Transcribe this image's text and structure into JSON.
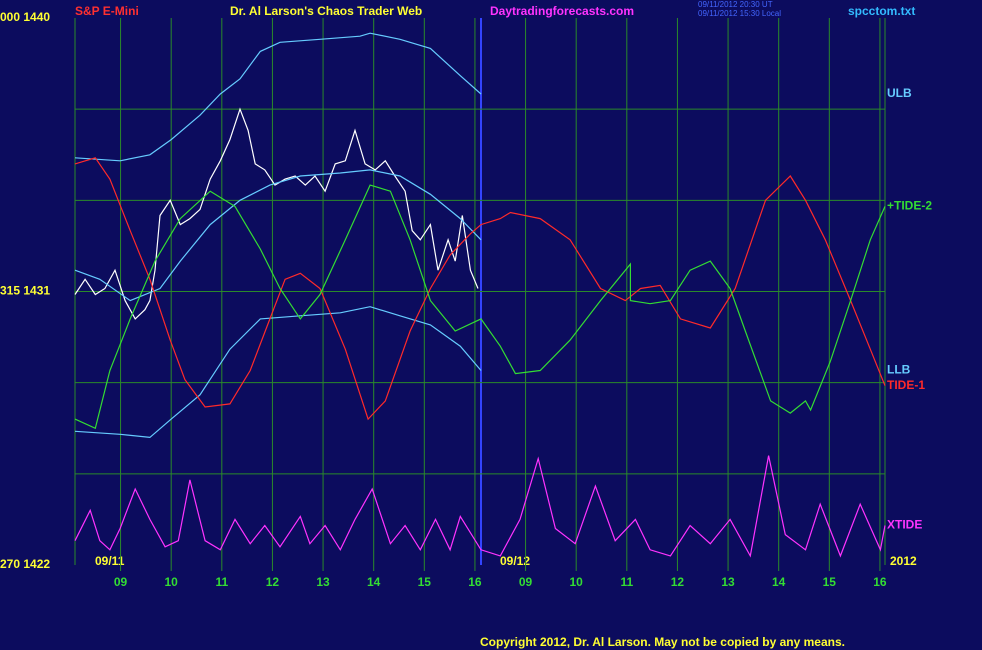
{
  "chart_data": {
    "type": "line",
    "symbol": "S&P E-Mini",
    "title": "Dr. Al Larson's Chaos Trader Web",
    "site": "Daytradingforecasts.com",
    "timestamps": [
      "09/11/2012 20:30 UT",
      "09/11/2012 15:30 Local"
    ],
    "file": "spcctom.txt",
    "copyright": "Copyright 2012, Dr. Al Larson. May not be copied by any means.",
    "day_labels": [
      "09/11",
      "09/12"
    ],
    "year": "2012",
    "xlim": [
      8.1,
      24.1
    ],
    "xticks": [
      {
        "value": 9,
        "label": "09"
      },
      10,
      11,
      12,
      13,
      14,
      15,
      16,
      {
        "value": 17,
        "label": "09"
      },
      {
        "value": 18,
        "label": "10"
      },
      {
        "value": 19,
        "label": "11"
      },
      {
        "value": 20,
        "label": "12"
      },
      {
        "value": 21,
        "label": "13"
      },
      {
        "value": 22,
        "label": "14"
      },
      {
        "value": 23,
        "label": "15"
      },
      {
        "value": 24,
        "label": "16"
      }
    ],
    "ylim": [
      1422,
      1440
    ],
    "yticks": [
      {
        "value": 1440,
        "label": "000 1440"
      },
      {
        "value": 1431,
        "label": "315 1431"
      },
      {
        "value": 1422,
        "label": "270 1422"
      }
    ],
    "ygrid": [
      1437,
      1434,
      1428,
      1425
    ],
    "grid": true,
    "series": [
      {
        "color": "#ffffff",
        "x": [
          8.1,
          8.3,
          8.5,
          8.69,
          8.89,
          9.09,
          9.29,
          9.48,
          9.58,
          9.68,
          9.78,
          9.98,
          10.18,
          10.37,
          10.57,
          10.77,
          10.97,
          11.16,
          11.36,
          11.52,
          11.66,
          11.85,
          12.05,
          12.25,
          12.45,
          12.65,
          12.84,
          13.04,
          13.24,
          13.44,
          13.63,
          13.83,
          14.03,
          14.23,
          14.42,
          14.62,
          14.76,
          14.92,
          15.12,
          15.27,
          15.47,
          15.61,
          15.75,
          15.91,
          16.06
        ],
        "values": [
          1430.9,
          1431.4,
          1430.9,
          1431.1,
          1431.7,
          1430.7,
          1430.1,
          1430.4,
          1430.7,
          1431.7,
          1433.5,
          1434.0,
          1433.2,
          1433.4,
          1433.7,
          1434.7,
          1435.3,
          1436.0,
          1437.0,
          1436.3,
          1435.2,
          1435.0,
          1434.5,
          1434.7,
          1434.8,
          1434.5,
          1434.8,
          1434.3,
          1435.2,
          1435.3,
          1436.3,
          1435.2,
          1435.0,
          1435.3,
          1434.8,
          1434.3,
          1433.0,
          1432.7,
          1433.2,
          1431.7,
          1432.7,
          1432.0,
          1433.5,
          1431.7,
          1431.1
        ]
      },
      {
        "name": "ULB",
        "color": "#66ccff",
        "x": [
          8.1,
          8.99,
          9.58,
          10.0,
          10.57,
          10.97,
          11.36,
          11.76,
          12.15,
          12.94,
          13.73,
          13.93,
          14.52,
          15.12,
          15.71,
          16.12
        ],
        "values": [
          1435.4,
          1435.3,
          1435.5,
          1436.0,
          1436.8,
          1437.5,
          1438.0,
          1438.9,
          1439.2,
          1439.3,
          1439.4,
          1439.5,
          1439.3,
          1439.0,
          1438.1,
          1437.5
        ]
      },
      {
        "color": "#66ccff",
        "x": [
          8.1,
          8.59,
          9.19,
          9.78,
          10.18,
          10.77,
          11.36,
          11.95,
          12.55,
          13.34,
          13.93,
          14.52,
          15.12,
          15.71,
          16.12
        ],
        "values": [
          1431.7,
          1431.4,
          1430.7,
          1431.1,
          1432.0,
          1433.2,
          1434.0,
          1434.5,
          1434.8,
          1434.9,
          1435.0,
          1434.8,
          1434.2,
          1433.4,
          1432.7
        ]
      },
      {
        "name": "LLB",
        "color": "#66ccff",
        "x": [
          8.1,
          8.99,
          9.58,
          10.0,
          10.57,
          11.16,
          11.76,
          12.55,
          13.34,
          13.93,
          14.52,
          15.12,
          15.71,
          16.12
        ],
        "values": [
          1426.4,
          1426.3,
          1426.2,
          1426.8,
          1427.6,
          1429.1,
          1430.1,
          1430.2,
          1430.3,
          1430.5,
          1430.2,
          1429.9,
          1429.2,
          1428.4
        ]
      },
      {
        "name": "TIDE-1",
        "color": "#ff2a2a",
        "x": [
          8.1,
          8.5,
          8.79,
          9.19,
          9.58,
          9.98,
          10.27,
          10.67,
          11.16,
          11.56,
          11.95,
          12.25,
          12.55,
          12.94,
          13.44,
          13.89,
          14.23,
          14.72,
          15.12,
          15.51,
          15.91,
          16.12,
          16.5,
          16.7,
          17.29,
          17.88,
          18.48,
          18.97,
          19.27,
          19.66,
          20.06,
          20.65,
          21.14,
          21.74,
          22.23,
          22.53,
          22.92,
          23.42,
          23.81,
          24.1
        ],
        "values": [
          1435.2,
          1435.4,
          1434.7,
          1433.0,
          1431.4,
          1429.4,
          1428.1,
          1427.2,
          1427.3,
          1428.4,
          1430.1,
          1431.4,
          1431.6,
          1431.1,
          1429.1,
          1426.8,
          1427.4,
          1429.7,
          1431.1,
          1432.2,
          1432.9,
          1433.2,
          1433.4,
          1433.6,
          1433.4,
          1432.7,
          1431.1,
          1430.7,
          1431.1,
          1431.2,
          1430.1,
          1429.8,
          1431.1,
          1434.0,
          1434.8,
          1434.0,
          1432.7,
          1430.7,
          1429.1,
          1427.9
        ]
      },
      {
        "name": "+TIDE-2",
        "color": "#33dd33",
        "x": [
          8.1,
          8.5,
          8.79,
          9.19,
          9.68,
          10.18,
          10.77,
          11.26,
          11.76,
          12.15,
          12.55,
          12.94,
          13.44,
          13.93,
          14.33,
          14.72,
          15.12,
          15.61,
          16.12,
          16.5,
          16.8,
          17.29,
          17.88,
          18.48,
          19.07,
          19.07,
          19.46,
          19.86,
          20.25,
          20.65,
          21.04,
          21.34,
          21.84,
          22.23,
          22.53,
          22.63,
          23.02,
          23.42,
          23.81,
          24.1
        ],
        "values": [
          1426.8,
          1426.5,
          1428.4,
          1430.1,
          1432.0,
          1433.4,
          1434.3,
          1433.8,
          1432.4,
          1431.1,
          1430.1,
          1430.9,
          1432.7,
          1434.5,
          1434.3,
          1432.7,
          1430.7,
          1429.7,
          1430.1,
          1429.2,
          1428.3,
          1428.4,
          1429.4,
          1430.7,
          1431.9,
          1430.7,
          1430.6,
          1430.7,
          1431.7,
          1432.0,
          1431.1,
          1429.7,
          1427.4,
          1427.0,
          1427.4,
          1427.1,
          1428.7,
          1430.7,
          1432.7,
          1433.8
        ]
      },
      {
        "name": "XTIDE",
        "color": "#ff33ff",
        "x": [
          8.1,
          8.4,
          8.59,
          8.79,
          8.99,
          9.29,
          9.58,
          9.88,
          10.14,
          10.37,
          10.67,
          10.97,
          11.26,
          11.56,
          11.85,
          12.15,
          12.55,
          12.74,
          13.04,
          13.34,
          13.63,
          13.97,
          14.33,
          14.62,
          14.92,
          15.22,
          15.51,
          15.71,
          16.12,
          16.5,
          16.89,
          17.25,
          17.59,
          17.98,
          18.38,
          18.77,
          19.17,
          19.46,
          19.86,
          20.25,
          20.65,
          21.04,
          21.44,
          21.8,
          22.13,
          22.53,
          22.82,
          23.22,
          23.61,
          24.01,
          24.1
        ],
        "values": [
          1422.8,
          1423.8,
          1422.8,
          1422.5,
          1423.2,
          1424.5,
          1423.5,
          1422.6,
          1422.8,
          1424.8,
          1422.8,
          1422.5,
          1423.5,
          1422.7,
          1423.3,
          1422.6,
          1423.6,
          1422.7,
          1423.3,
          1422.5,
          1423.5,
          1424.5,
          1422.7,
          1423.3,
          1422.5,
          1423.5,
          1422.5,
          1423.6,
          1422.5,
          1422.3,
          1423.5,
          1425.5,
          1423.2,
          1422.7,
          1424.6,
          1422.8,
          1423.5,
          1422.5,
          1422.3,
          1423.3,
          1422.7,
          1423.5,
          1422.3,
          1425.6,
          1423.0,
          1422.5,
          1424.0,
          1422.3,
          1424.0,
          1422.5,
          1423.3
        ]
      }
    ]
  }
}
